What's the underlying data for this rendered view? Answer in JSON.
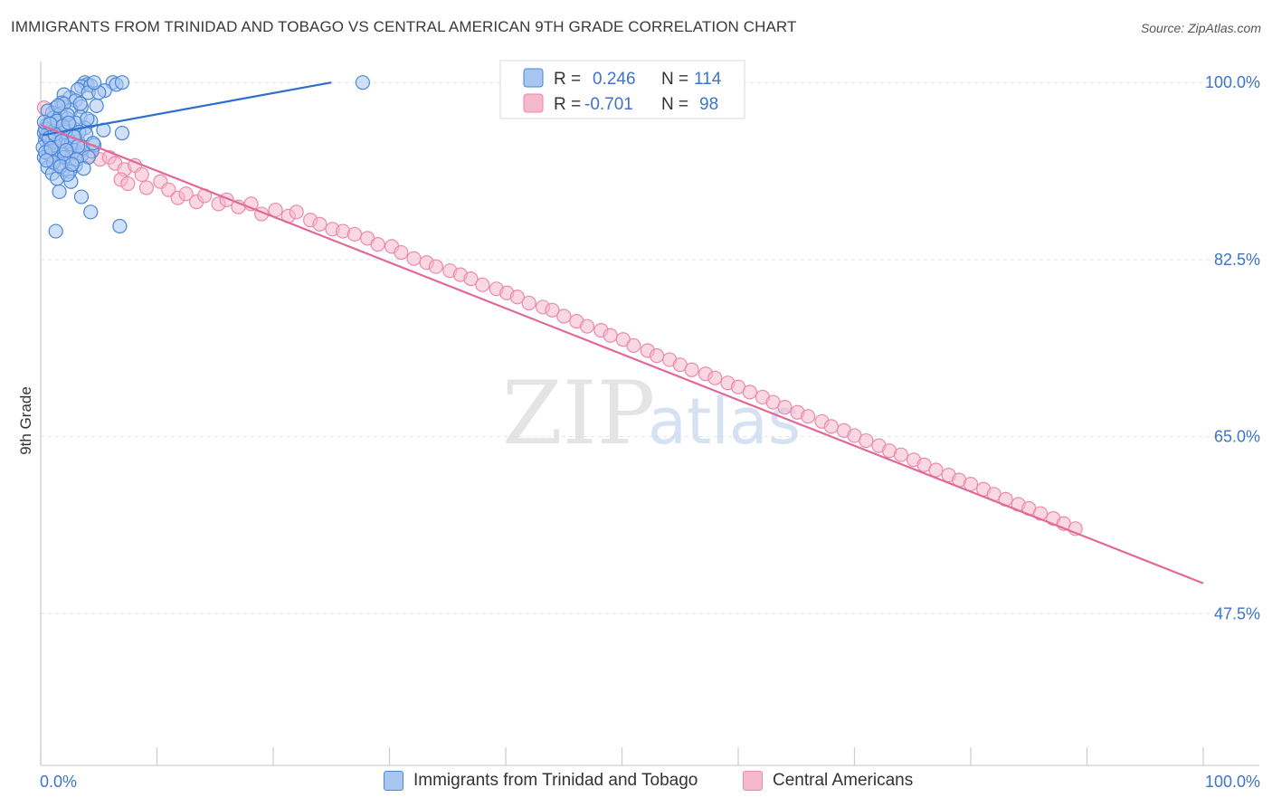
{
  "header": {
    "title": "IMMIGRANTS FROM TRINIDAD AND TOBAGO VS CENTRAL AMERICAN 9TH GRADE CORRELATION CHART",
    "source": "Source: ZipAtlas.com"
  },
  "watermark": {
    "zip": "ZIP",
    "atlas": "atlas"
  },
  "colors": {
    "blue_fill": "#a9c6f0",
    "blue_stroke": "#4a86d8",
    "blue_line": "#2e6fce",
    "pink_fill": "#f6b8cb",
    "pink_stroke": "#ea8aab",
    "pink_line": "#e2689a",
    "axis_label": "#3d74c9"
  },
  "legend_stats": [
    {
      "r_label": "R = ",
      "r_value": "0.246",
      "n_label": "N = ",
      "n_value": "114"
    },
    {
      "r_label": "R = ",
      "r_value": "-0.701",
      "n_label": "N = ",
      "n_value": "98"
    }
  ],
  "legend_bottom": [
    {
      "label": "Immigrants from Trinidad and Tobago"
    },
    {
      "label": "Central Americans"
    }
  ],
  "chart_data": {
    "type": "scatter",
    "title": "IMMIGRANTS FROM TRINIDAD AND TOBAGO VS CENTRAL AMERICAN 9TH GRADE CORRELATION CHART",
    "xlabel": "",
    "ylabel": "9th Grade",
    "xlim": [
      0,
      100
    ],
    "ylim": [
      32.5,
      101
    ],
    "x_tick_labels": [
      "0.0%",
      "100.0%"
    ],
    "y_ticks": [
      100.0,
      82.5,
      65.0,
      47.5
    ],
    "y_tick_labels": [
      "100.0%",
      "82.5%",
      "65.0%",
      "47.5%"
    ],
    "grid": true,
    "series": [
      {
        "name": "Immigrants from Trinidad and Tobago",
        "R": 0.246,
        "N": 114,
        "trendline": {
          "x": [
            0.2,
            25.0
          ],
          "y": [
            94.8,
            100.0
          ]
        },
        "points": [
          [
            3.8,
            100.0
          ],
          [
            4.0,
            99.8
          ],
          [
            3.5,
            99.6
          ],
          [
            4.3,
            99.7
          ],
          [
            6.2,
            100.0
          ],
          [
            6.5,
            99.8
          ],
          [
            7.0,
            100.0
          ],
          [
            27.7,
            100.0
          ],
          [
            3.2,
            99.3
          ],
          [
            4.1,
            99.0
          ],
          [
            5.5,
            99.2
          ],
          [
            2.5,
            98.5
          ],
          [
            2.0,
            98.8
          ],
          [
            3.0,
            98.2
          ],
          [
            1.8,
            98.0
          ],
          [
            3.5,
            97.6
          ],
          [
            1.3,
            97.5
          ],
          [
            2.6,
            97.3
          ],
          [
            1.0,
            97.0
          ],
          [
            1.7,
            96.9
          ],
          [
            3.4,
            96.6
          ],
          [
            2.3,
            96.4
          ],
          [
            4.3,
            96.2
          ],
          [
            0.8,
            96.0
          ],
          [
            1.6,
            96.0
          ],
          [
            2.5,
            95.8
          ],
          [
            3.8,
            95.5
          ],
          [
            5.4,
            95.3
          ],
          [
            7.0,
            95.0
          ],
          [
            0.5,
            95.8
          ],
          [
            1.0,
            95.5
          ],
          [
            2.0,
            95.3
          ],
          [
            0.3,
            95.0
          ],
          [
            1.5,
            94.8
          ],
          [
            2.8,
            94.8
          ],
          [
            0.6,
            94.6
          ],
          [
            1.7,
            94.4
          ],
          [
            3.2,
            94.2
          ],
          [
            0.4,
            94.3
          ],
          [
            1.2,
            94.1
          ],
          [
            0.8,
            93.9
          ],
          [
            2.0,
            93.7
          ],
          [
            4.6,
            93.8
          ],
          [
            0.2,
            93.6
          ],
          [
            1.5,
            93.4
          ],
          [
            2.9,
            93.3
          ],
          [
            0.7,
            93.1
          ],
          [
            1.9,
            92.9
          ],
          [
            3.5,
            92.8
          ],
          [
            4.4,
            93.2
          ],
          [
            0.3,
            92.6
          ],
          [
            1.1,
            92.5
          ],
          [
            2.4,
            92.2
          ],
          [
            1.6,
            92.0
          ],
          [
            3.0,
            91.8
          ],
          [
            0.6,
            91.6
          ],
          [
            1.9,
            91.4
          ],
          [
            2.5,
            91.2
          ],
          [
            1.0,
            91.0
          ],
          [
            1.4,
            90.5
          ],
          [
            2.6,
            90.2
          ],
          [
            1.6,
            89.2
          ],
          [
            3.5,
            88.7
          ],
          [
            4.3,
            87.2
          ],
          [
            6.8,
            85.8
          ],
          [
            1.3,
            85.3
          ],
          [
            2.0,
            97.9
          ],
          [
            0.9,
            95.2
          ],
          [
            1.1,
            96.5
          ],
          [
            2.2,
            94.1
          ],
          [
            3.0,
            96.0
          ],
          [
            0.5,
            94.8
          ],
          [
            1.8,
            93.2
          ],
          [
            2.7,
            93.0
          ],
          [
            0.4,
            95.4
          ],
          [
            0.9,
            92.8
          ],
          [
            1.3,
            94.5
          ],
          [
            2.1,
            95.1
          ],
          [
            3.3,
            95.1
          ],
          [
            3.9,
            94.9
          ],
          [
            0.6,
            97.2
          ],
          [
            1.4,
            96.2
          ],
          [
            2.3,
            96.8
          ],
          [
            4.8,
            97.7
          ],
          [
            3.6,
            93.5
          ],
          [
            4.1,
            92.6
          ],
          [
            1.2,
            93.8
          ],
          [
            0.4,
            93.1
          ],
          [
            2.0,
            92.6
          ],
          [
            3.1,
            92.4
          ],
          [
            4.0,
            96.4
          ],
          [
            0.7,
            94.5
          ],
          [
            1.9,
            95.7
          ],
          [
            2.6,
            93.9
          ],
          [
            1.1,
            92.1
          ],
          [
            5.0,
            99.0
          ],
          [
            0.3,
            96.1
          ],
          [
            1.7,
            91.7
          ],
          [
            2.3,
            90.9
          ],
          [
            3.7,
            91.5
          ],
          [
            2.9,
            94.6
          ],
          [
            3.4,
            97.9
          ],
          [
            1.5,
            97.7
          ],
          [
            4.6,
            100.0
          ],
          [
            0.9,
            93.5
          ],
          [
            2.4,
            96.0
          ],
          [
            1.2,
            94.9
          ],
          [
            0.5,
            92.3
          ],
          [
            2.7,
            91.9
          ],
          [
            3.2,
            93.7
          ],
          [
            1.8,
            94.2
          ],
          [
            0.8,
            95.9
          ],
          [
            4.5,
            94.0
          ],
          [
            2.2,
            93.3
          ]
        ]
      },
      {
        "name": "Central Americans",
        "R": -0.701,
        "N": 98,
        "trendline": {
          "x": [
            0.0,
            100.0
          ],
          "y": [
            95.8,
            50.5
          ]
        },
        "points": [
          [
            0.3,
            97.5
          ],
          [
            0.8,
            96.2
          ],
          [
            1.3,
            95.6
          ],
          [
            0.6,
            94.9
          ],
          [
            1.9,
            94.1
          ],
          [
            2.6,
            93.8
          ],
          [
            3.5,
            93.2
          ],
          [
            4.2,
            92.8
          ],
          [
            5.1,
            92.4
          ],
          [
            5.9,
            92.6
          ],
          [
            6.4,
            92.0
          ],
          [
            7.2,
            91.4
          ],
          [
            8.1,
            91.8
          ],
          [
            8.7,
            90.9
          ],
          [
            6.9,
            90.4
          ],
          [
            7.5,
            90.0
          ],
          [
            9.1,
            89.6
          ],
          [
            10.3,
            90.2
          ],
          [
            11.0,
            89.4
          ],
          [
            11.8,
            88.6
          ],
          [
            12.5,
            89.0
          ],
          [
            13.4,
            88.2
          ],
          [
            14.1,
            88.8
          ],
          [
            15.3,
            88.0
          ],
          [
            16.0,
            88.4
          ],
          [
            17.0,
            87.7
          ],
          [
            18.1,
            88.0
          ],
          [
            19.0,
            87.0
          ],
          [
            20.2,
            87.4
          ],
          [
            21.3,
            86.8
          ],
          [
            22.0,
            87.2
          ],
          [
            23.2,
            86.4
          ],
          [
            24.0,
            86.0
          ],
          [
            25.1,
            85.5
          ],
          [
            26.0,
            85.3
          ],
          [
            27.0,
            85.0
          ],
          [
            28.1,
            84.6
          ],
          [
            29.0,
            84.0
          ],
          [
            30.2,
            83.8
          ],
          [
            31.0,
            83.2
          ],
          [
            32.1,
            82.6
          ],
          [
            33.2,
            82.2
          ],
          [
            34.0,
            81.8
          ],
          [
            35.2,
            81.4
          ],
          [
            36.1,
            81.0
          ],
          [
            37.0,
            80.6
          ],
          [
            38.0,
            80.0
          ],
          [
            39.2,
            79.6
          ],
          [
            40.1,
            79.2
          ],
          [
            41.0,
            78.8
          ],
          [
            42.0,
            78.2
          ],
          [
            43.2,
            77.8
          ],
          [
            44.0,
            77.5
          ],
          [
            45.0,
            76.9
          ],
          [
            46.1,
            76.4
          ],
          [
            47.0,
            75.9
          ],
          [
            48.2,
            75.5
          ],
          [
            49.0,
            75.0
          ],
          [
            50.1,
            74.6
          ],
          [
            51.0,
            74.0
          ],
          [
            52.2,
            73.5
          ],
          [
            53.0,
            73.0
          ],
          [
            54.1,
            72.6
          ],
          [
            55.0,
            72.1
          ],
          [
            56.0,
            71.6
          ],
          [
            57.2,
            71.2
          ],
          [
            58.0,
            70.8
          ],
          [
            59.1,
            70.3
          ],
          [
            60.0,
            69.9
          ],
          [
            61.0,
            69.4
          ],
          [
            62.1,
            68.9
          ],
          [
            63.0,
            68.4
          ],
          [
            64.0,
            67.9
          ],
          [
            65.1,
            67.4
          ],
          [
            66.0,
            67.0
          ],
          [
            67.2,
            66.5
          ],
          [
            68.0,
            66.0
          ],
          [
            69.1,
            65.6
          ],
          [
            70.0,
            65.1
          ],
          [
            71.0,
            64.6
          ],
          [
            72.1,
            64.1
          ],
          [
            73.0,
            63.6
          ],
          [
            74.0,
            63.2
          ],
          [
            75.1,
            62.7
          ],
          [
            76.0,
            62.2
          ],
          [
            77.0,
            61.7
          ],
          [
            78.1,
            61.2
          ],
          [
            79.0,
            60.7
          ],
          [
            80.0,
            60.3
          ],
          [
            81.1,
            59.8
          ],
          [
            82.0,
            59.3
          ],
          [
            83.0,
            58.8
          ],
          [
            84.1,
            58.3
          ],
          [
            85.0,
            57.9
          ],
          [
            86.0,
            57.4
          ],
          [
            87.1,
            56.9
          ],
          [
            88.0,
            56.4
          ],
          [
            89.0,
            55.9
          ]
        ]
      }
    ]
  }
}
